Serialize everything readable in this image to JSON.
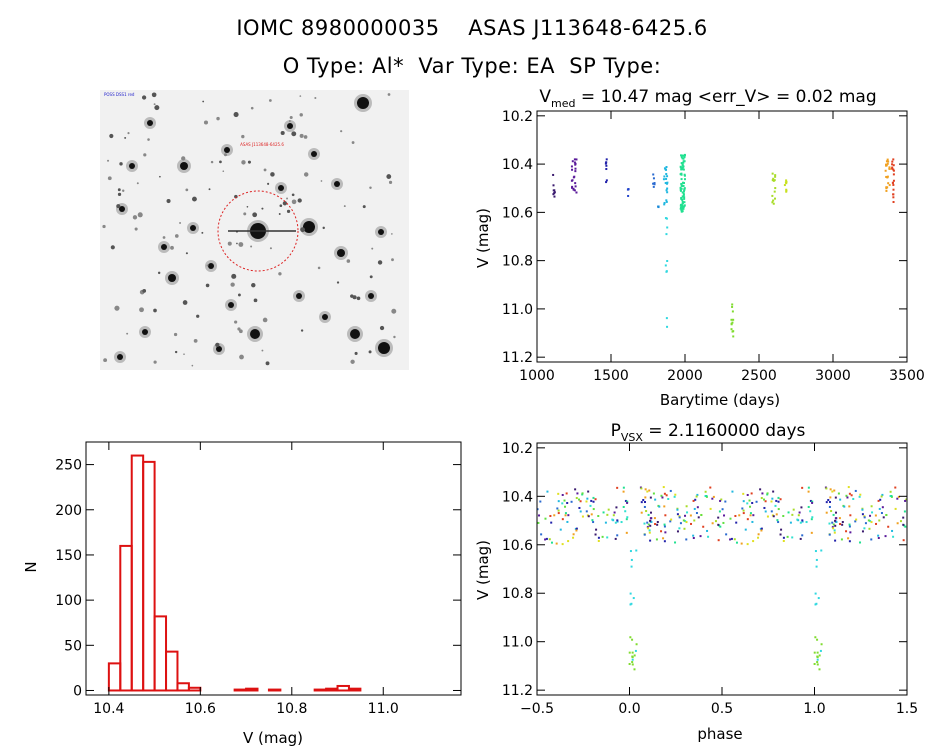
{
  "header": {
    "line1": "IOMC 8980000035    ASAS J113648-6425.6",
    "line2": "O Type: Al*  Var Type: EA  SP Type:"
  },
  "finding_chart": {
    "tiny_labels": [
      "ASAS J113648-6425.6",
      "POSS DSS1 red"
    ]
  },
  "chart_data": [
    {
      "type": "scatter",
      "id": "lightcurve",
      "title_main": "V",
      "title_sub": "med",
      "title_rest": " = 10.47 mag <err_V> = 0.02 mag",
      "xlabel": "Barytime (days)",
      "ylabel": "V (mag)",
      "xlim": [
        1000,
        3500
      ],
      "ylim": [
        11.22,
        10.18
      ],
      "xticks": [
        1000,
        1500,
        2000,
        2500,
        3000,
        3500
      ],
      "xtick_labels": [
        "1000",
        "1500",
        "2000",
        "2500",
        "3000",
        "3500"
      ],
      "yticks": [
        10.2,
        10.4,
        10.6,
        10.8,
        11.0,
        11.2
      ],
      "ytick_labels": [
        "10.2",
        "10.4",
        "10.6",
        "10.8",
        "11.0",
        "11.2"
      ],
      "clusters": [
        {
          "t": 1115,
          "dt": 14,
          "ymin": 10.43,
          "ymax": 10.55,
          "color": "#3a1a6e",
          "n": 8
        },
        {
          "t": 1250,
          "dt": 35,
          "ymin": 10.38,
          "ymax": 10.52,
          "color": "#5a1a9a",
          "n": 22
        },
        {
          "t": 1470,
          "dt": 12,
          "ymin": 10.38,
          "ymax": 10.48,
          "color": "#2222aa",
          "n": 8
        },
        {
          "t": 1615,
          "dt": 8,
          "ymin": 10.5,
          "ymax": 10.55,
          "color": "#2244cc",
          "n": 4
        },
        {
          "t": 1790,
          "dt": 14,
          "ymin": 10.43,
          "ymax": 10.5,
          "color": "#2a6ad0",
          "n": 6
        },
        {
          "t": 1820,
          "dt": 8,
          "ymin": 10.52,
          "ymax": 10.58,
          "color": "#1a8ad8",
          "n": 3
        },
        {
          "t": 1870,
          "dt": 26,
          "ymin": 10.38,
          "ymax": 10.62,
          "color": "#20b8e0",
          "n": 20
        },
        {
          "t": 1875,
          "dt": 10,
          "ymin": 10.62,
          "ymax": 10.86,
          "color": "#30d8e0",
          "n": 8
        },
        {
          "t": 1880,
          "dt": 6,
          "ymin": 11.0,
          "ymax": 11.12,
          "color": "#30d8e0",
          "n": 2
        },
        {
          "t": 1985,
          "dt": 30,
          "ymin": 10.36,
          "ymax": 10.6,
          "color": "#20e090",
          "n": 80
        },
        {
          "t": 2320,
          "dt": 14,
          "ymin": 10.98,
          "ymax": 11.12,
          "color": "#80dc30",
          "n": 12
        },
        {
          "t": 2600,
          "dt": 20,
          "ymin": 10.43,
          "ymax": 10.58,
          "color": "#a8dc28",
          "n": 14
        },
        {
          "t": 2680,
          "dt": 14,
          "ymin": 10.46,
          "ymax": 10.53,
          "color": "#c8e020",
          "n": 8
        },
        {
          "t": 3370,
          "dt": 30,
          "ymin": 10.38,
          "ymax": 10.52,
          "color": "#f0a020",
          "n": 20
        },
        {
          "t": 3405,
          "dt": 14,
          "ymin": 10.38,
          "ymax": 10.57,
          "color": "#e04020",
          "n": 18
        }
      ]
    },
    {
      "type": "bar",
      "id": "histogram",
      "xlabel": "V (mag)",
      "ylabel": "N",
      "xlim": [
        10.35,
        11.17
      ],
      "ylim": [
        -5,
        275
      ],
      "xticks": [
        10.4,
        10.6,
        10.8,
        11.0
      ],
      "xtick_labels": [
        "10.4",
        "10.6",
        "10.8",
        "11.0"
      ],
      "yticks": [
        0,
        50,
        100,
        150,
        200,
        250
      ],
      "ytick_labels": [
        "0",
        "50",
        "100",
        "150",
        "200",
        "250"
      ],
      "bin_start": 10.375,
      "bin_width": 0.025,
      "values": [
        0,
        30,
        160,
        260,
        253,
        82,
        43,
        8,
        3,
        0,
        0,
        0,
        1,
        2,
        0,
        1,
        0,
        0,
        0,
        1,
        2,
        5,
        2,
        0
      ],
      "color": "#dd1111"
    },
    {
      "type": "scatter",
      "id": "phased",
      "title_main": "P",
      "title_sub": "VSX",
      "title_rest": " = 2.1160000 days",
      "xlabel": "phase",
      "ylabel": "V (mag)",
      "xlim": [
        -0.5,
        1.5
      ],
      "ylim": [
        11.22,
        10.18
      ],
      "xticks": [
        -0.5,
        0.0,
        0.5,
        1.0,
        1.5
      ],
      "xtick_labels": [
        "−0.5",
        "0.0",
        "0.5",
        "1.0",
        "1.5"
      ],
      "yticks": [
        10.2,
        10.4,
        10.6,
        10.8,
        11.0,
        11.2
      ],
      "ytick_labels": [
        "10.2",
        "10.4",
        "10.6",
        "10.8",
        "11.0",
        "11.2"
      ],
      "period_days": 2.116,
      "eclipse_phase": 0.02,
      "colors": [
        "#3a1a6e",
        "#5a1a9a",
        "#2222aa",
        "#2a6ad0",
        "#20b8e0",
        "#30e0d0",
        "#20e090",
        "#60e040",
        "#a8dc28",
        "#e0e020",
        "#f0a020",
        "#e04020"
      ]
    }
  ]
}
